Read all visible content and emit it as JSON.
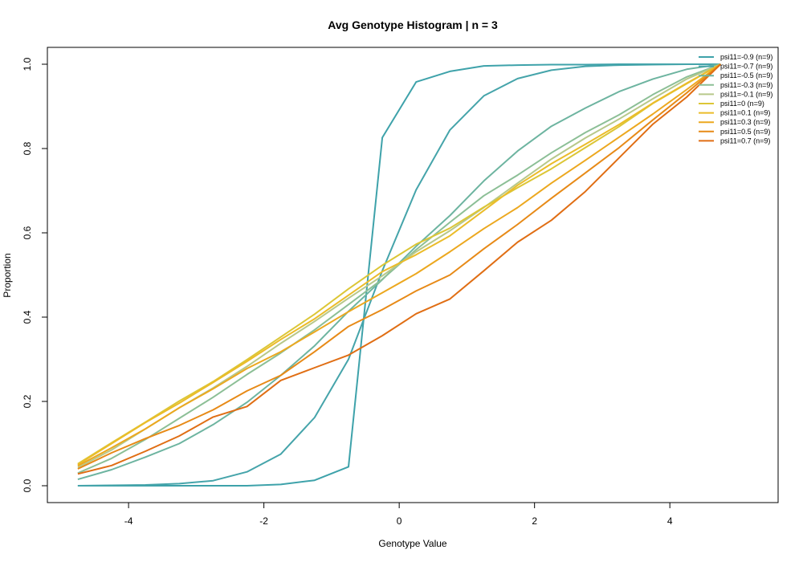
{
  "chart_data": {
    "type": "line",
    "title": "Avg Genotype Histogram | n = 3",
    "xlabel": "Genotype Value",
    "ylabel": "Proportion",
    "xlim": [
      -5.2,
      5.6
    ],
    "ylim": [
      -0.04,
      1.04
    ],
    "x_ticks": [
      -4,
      -2,
      0,
      2,
      4
    ],
    "y_ticks": [
      0.0,
      0.2,
      0.4,
      0.6,
      0.8,
      1.0
    ],
    "x_tick_labels": [
      "-4",
      "-2",
      "0",
      "2",
      "4"
    ],
    "y_tick_labels": [
      "0.0",
      "0.2",
      "0.4",
      "0.6",
      "0.8",
      "1.0"
    ],
    "grid": false,
    "legend_position": "top-right",
    "x": [
      -4.75,
      -4.25,
      -3.75,
      -3.25,
      -2.75,
      -2.25,
      -1.75,
      -1.25,
      -0.75,
      -0.25,
      0.25,
      0.75,
      1.25,
      1.75,
      2.25,
      2.75,
      3.25,
      3.75,
      4.25,
      4.75
    ],
    "series": [
      {
        "name": "psi11=-0.9 (n=9)",
        "color": "#3ea2aa",
        "values": [
          0.0,
          0.0,
          0.0,
          0.0,
          0.0,
          0.0,
          0.003,
          0.013,
          0.045,
          0.826,
          0.958,
          0.983,
          0.996,
          0.998,
          0.999,
          0.999,
          1.0,
          1.0,
          1.0,
          1.0
        ]
      },
      {
        "name": "psi11=-0.7 (n=9)",
        "color": "#45a4aa",
        "values": [
          0.0,
          0.001,
          0.002,
          0.005,
          0.012,
          0.033,
          0.075,
          0.162,
          0.3,
          0.51,
          0.702,
          0.844,
          0.925,
          0.966,
          0.986,
          0.995,
          0.998,
          0.999,
          1.0,
          1.0
        ]
      },
      {
        "name": "psi11=-0.5 (n=9)",
        "color": "#6db4a0",
        "values": [
          0.015,
          0.038,
          0.068,
          0.1,
          0.145,
          0.198,
          0.262,
          0.332,
          0.414,
          0.489,
          0.568,
          0.641,
          0.723,
          0.794,
          0.853,
          0.896,
          0.935,
          0.965,
          0.988,
          1.0
        ]
      },
      {
        "name": "psi11=-0.3 (n=9)",
        "color": "#8cbf96",
        "values": [
          0.03,
          0.065,
          0.11,
          0.16,
          0.21,
          0.264,
          0.315,
          0.37,
          0.43,
          0.49,
          0.56,
          0.625,
          0.688,
          0.737,
          0.79,
          0.838,
          0.88,
          0.928,
          0.97,
          1.0
        ]
      },
      {
        "name": "psi11=-0.1 (n=9)",
        "color": "#b7c88a",
        "values": [
          0.043,
          0.085,
          0.135,
          0.185,
          0.232,
          0.283,
          0.338,
          0.39,
          0.445,
          0.498,
          0.555,
          0.605,
          0.66,
          0.718,
          0.775,
          0.825,
          0.87,
          0.918,
          0.965,
          1.0
        ]
      },
      {
        "name": "psi11=0 (n=9)",
        "color": "#dcc636",
        "values": [
          0.052,
          0.102,
          0.151,
          0.201,
          0.247,
          0.299,
          0.353,
          0.407,
          0.467,
          0.523,
          0.573,
          0.611,
          0.661,
          0.707,
          0.752,
          0.802,
          0.852,
          0.907,
          0.954,
          1.0
        ]
      },
      {
        "name": "psi11=0.1 (n=9)",
        "color": "#ebbc29",
        "values": [
          0.05,
          0.1,
          0.15,
          0.196,
          0.245,
          0.295,
          0.347,
          0.396,
          0.452,
          0.508,
          0.548,
          0.593,
          0.653,
          0.713,
          0.764,
          0.81,
          0.857,
          0.908,
          0.955,
          1.0
        ]
      },
      {
        "name": "psi11=0.3 (n=9)",
        "color": "#eca81f",
        "values": [
          0.047,
          0.09,
          0.135,
          0.185,
          0.23,
          0.278,
          0.318,
          0.365,
          0.413,
          0.458,
          0.503,
          0.555,
          0.61,
          0.66,
          0.718,
          0.772,
          0.827,
          0.882,
          0.94,
          1.0
        ]
      },
      {
        "name": "psi11=0.5 (n=9)",
        "color": "#e78a17",
        "values": [
          0.04,
          0.078,
          0.112,
          0.143,
          0.18,
          0.225,
          0.262,
          0.318,
          0.378,
          0.418,
          0.462,
          0.5,
          0.562,
          0.62,
          0.682,
          0.742,
          0.802,
          0.868,
          0.932,
          1.0
        ]
      },
      {
        "name": "psi11=0.7 (n=9)",
        "color": "#e06e14",
        "values": [
          0.028,
          0.048,
          0.082,
          0.118,
          0.163,
          0.188,
          0.25,
          0.28,
          0.31,
          0.356,
          0.408,
          0.443,
          0.51,
          0.578,
          0.63,
          0.698,
          0.778,
          0.858,
          0.922,
          1.0
        ]
      }
    ]
  }
}
